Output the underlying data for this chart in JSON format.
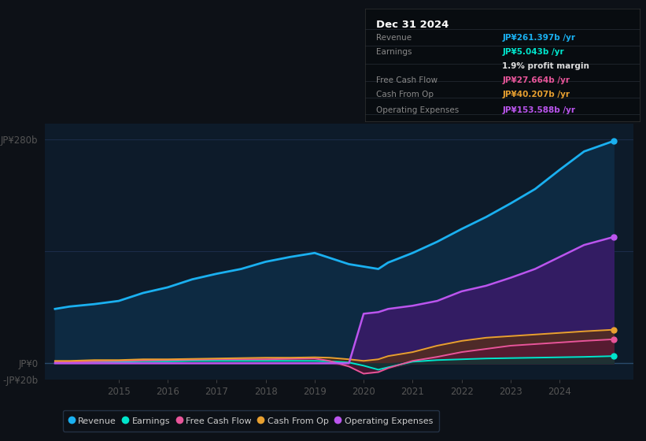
{
  "bg_color": "#0d1117",
  "plot_bg_color": "#0d1b2a",
  "grid_color": "#1e3050",
  "ylim": [
    -20,
    300
  ],
  "xlim": [
    2013.5,
    2025.5
  ],
  "xticks": [
    2015,
    2016,
    2017,
    2018,
    2019,
    2020,
    2021,
    2022,
    2023,
    2024
  ],
  "years": [
    2013.7,
    2014.0,
    2014.5,
    2015.0,
    2015.5,
    2016.0,
    2016.5,
    2017.0,
    2017.5,
    2018.0,
    2018.5,
    2019.0,
    2019.3,
    2019.7,
    2020.0,
    2020.3,
    2020.5,
    2021.0,
    2021.5,
    2022.0,
    2022.5,
    2023.0,
    2023.5,
    2024.0,
    2024.5,
    2025.1
  ],
  "revenue": [
    68,
    71,
    74,
    78,
    88,
    95,
    105,
    112,
    118,
    127,
    133,
    138,
    132,
    124,
    121,
    118,
    126,
    138,
    152,
    168,
    183,
    200,
    218,
    242,
    265,
    278
  ],
  "earnings": [
    2,
    2,
    2,
    2,
    2.5,
    2.5,
    3,
    3,
    3,
    3,
    3,
    3,
    2.5,
    1,
    -3,
    -8,
    -5,
    2,
    4,
    5,
    6,
    6.5,
    7,
    7.5,
    8,
    9
  ],
  "free_cash_flow": [
    2,
    2,
    2.5,
    3,
    3.5,
    4,
    4.5,
    5,
    5,
    5,
    5.5,
    6,
    3,
    -4,
    -13,
    -11,
    -6,
    3,
    8,
    14,
    18,
    22,
    24,
    26,
    28,
    30
  ],
  "cash_from_op": [
    3,
    3,
    4,
    4,
    5,
    5,
    5.5,
    6,
    6.5,
    7,
    7,
    7.5,
    7,
    5,
    3,
    5,
    9,
    14,
    22,
    28,
    32,
    34,
    36,
    38,
    40,
    42
  ],
  "op_expenses": [
    0,
    0,
    0,
    0,
    0,
    0,
    0,
    0,
    0,
    0,
    0,
    0,
    0,
    0,
    62,
    64,
    68,
    72,
    78,
    90,
    97,
    107,
    118,
    133,
    148,
    158
  ],
  "revenue_color": "#1ab0f0",
  "earnings_color": "#00e5cc",
  "fcf_color": "#e8559a",
  "cfop_color": "#e8a030",
  "opex_color": "#bb55ee",
  "revenue_fill": "#0f2a45",
  "opex_fill": "#3a1a6a",
  "legend_items": [
    "Revenue",
    "Earnings",
    "Free Cash Flow",
    "Cash From Op",
    "Operating Expenses"
  ],
  "legend_colors": [
    "#1ab0f0",
    "#00e5cc",
    "#e8559a",
    "#e8a030",
    "#bb55ee"
  ],
  "info_title": "Dec 31 2024",
  "info_rows": [
    {
      "label": "Revenue",
      "value": "JP¥261.397b /yr",
      "lcolor": "#888888",
      "vcolor": "#1ab0f0"
    },
    {
      "label": "Earnings",
      "value": "JP¥5.043b /yr",
      "lcolor": "#888888",
      "vcolor": "#00e5cc"
    },
    {
      "label": "",
      "value": "1.9% profit margin",
      "lcolor": "#888888",
      "vcolor": "#dddddd"
    },
    {
      "label": "Free Cash Flow",
      "value": "JP¥27.664b /yr",
      "lcolor": "#888888",
      "vcolor": "#e8559a"
    },
    {
      "label": "Cash From Op",
      "value": "JP¥40.207b /yr",
      "lcolor": "#888888",
      "vcolor": "#e8a030"
    },
    {
      "label": "Operating Expenses",
      "value": "JP¥153.588b /yr",
      "lcolor": "#888888",
      "vcolor": "#bb55ee"
    }
  ]
}
